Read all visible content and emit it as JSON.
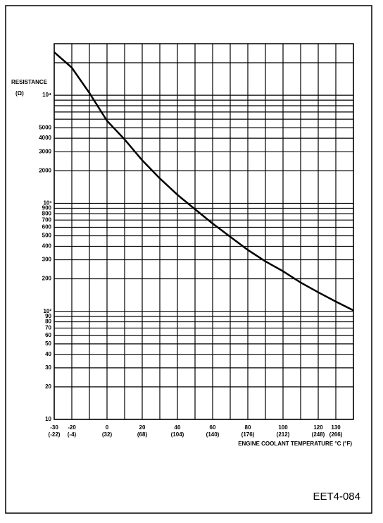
{
  "chart_data": {
    "type": "line",
    "y_label": "RESISTANCE",
    "y_unit": "(Ω)",
    "x_label": "ENGINE COOLANT TEMPERATURE °C (°F)",
    "figure_id": "EET4-084",
    "x": [
      -30,
      -20,
      -10,
      0,
      10,
      20,
      30,
      40,
      50,
      60,
      70,
      80,
      90,
      100,
      110,
      120,
      130,
      140
    ],
    "values": [
      25000,
      18000,
      10500,
      5800,
      3900,
      2500,
      1700,
      1200,
      880,
      650,
      490,
      370,
      290,
      235,
      185,
      150,
      123,
      102
    ],
    "color": "#000000",
    "xlim": [
      -30,
      140
    ],
    "ylim": [
      10,
      30000
    ],
    "ylog": true,
    "grid": true,
    "xticks": [
      -30,
      -20,
      {
        "value": -10,
        "label": null
      },
      0,
      {
        "value": 10,
        "label": null
      },
      20,
      {
        "value": 30,
        "label": null
      },
      40,
      {
        "value": 50,
        "label": null
      },
      60,
      {
        "value": 70,
        "label": null
      },
      80,
      {
        "value": 90,
        "label": null
      },
      100,
      {
        "value": 110,
        "label": null
      },
      120,
      130,
      {
        "value": 140,
        "label": null
      }
    ],
    "xticks_f": [
      "(-22)",
      "(-4)",
      null,
      "(32)",
      null,
      "(68)",
      null,
      "(104)",
      null,
      "(140)",
      null,
      "(176)",
      null,
      "(212)",
      null,
      "(248)",
      "(266)",
      null
    ],
    "yticks": [
      10,
      20,
      30,
      40,
      50,
      60,
      70,
      80,
      90,
      {
        "value": 100,
        "label": "10²"
      },
      200,
      300,
      400,
      500,
      600,
      700,
      800,
      900,
      {
        "value": 1000,
        "label": "10³"
      },
      2000,
      3000,
      4000,
      5000,
      {
        "value": 6000,
        "label": null
      },
      {
        "value": 7000,
        "label": null
      },
      {
        "value": 8000,
        "label": null
      },
      {
        "value": 9000,
        "label": null
      },
      {
        "value": 10000,
        "label": "10⁴"
      },
      {
        "value": 20000,
        "label": null
      }
    ]
  }
}
